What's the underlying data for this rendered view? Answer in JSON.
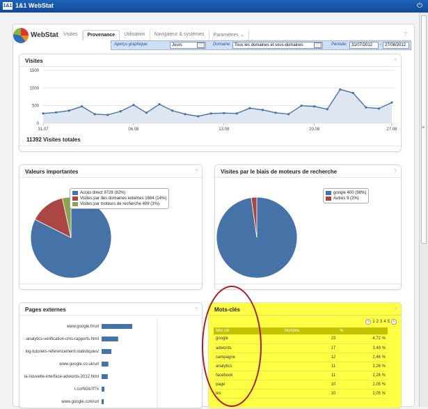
{
  "topbar": {
    "logo": "1&1",
    "title": "1&1 WebStat",
    "power_icon": "power-icon"
  },
  "brand": {
    "name": "WebStat"
  },
  "tabs": [
    {
      "label": "Visites"
    },
    {
      "label": "Provenance"
    },
    {
      "label": "Utilisation"
    },
    {
      "label": "Navigateur & systèmes"
    },
    {
      "label": "Paramètres"
    }
  ],
  "filters": {
    "apercu_label": "Aperçu graphique:",
    "apercu_value": "Jours",
    "domaine_label": "Domaine:",
    "domaine_value": "Tous les domaines et sous-domaines",
    "periode_label": "Période:",
    "date_from": "31/07/2012",
    "date_to": "27/08/2012"
  },
  "visites": {
    "title": "Visites",
    "total": "11392 Visites totales",
    "help": "?"
  },
  "chart_data": [
    {
      "type": "area",
      "title": "Visites",
      "x_ticks": [
        "31.07",
        "06.08",
        "13.08",
        "20.08",
        "27.08"
      ],
      "y_ticks": [
        "0",
        "500",
        "1000",
        "1500"
      ],
      "ylim": [
        0,
        1500
      ],
      "grid": true,
      "values": [
        280,
        310,
        360,
        480,
        260,
        240,
        340,
        520,
        300,
        540,
        360,
        260,
        200,
        280,
        290,
        280,
        430,
        380,
        300,
        260,
        500,
        480,
        400,
        960,
        860,
        450,
        420,
        590
      ]
    },
    {
      "type": "pie",
      "title": "Valeurs importantes",
      "slices": [
        {
          "label": "Accès direct",
          "value": 9728,
          "pct": "82%",
          "color": "#4572a7"
        },
        {
          "label": "Visites par des domaines externes",
          "value": 1664,
          "pct": "14%",
          "color": "#aa4643"
        },
        {
          "label": "Visites par moteurs de recherche",
          "value": 409,
          "pct": "3%",
          "color": "#89a54e"
        }
      ]
    },
    {
      "type": "pie",
      "title": "Visites par le biais de moteurs de recherche",
      "slices": [
        {
          "label": "google",
          "value": 400,
          "pct": "98%",
          "color": "#4572a7"
        },
        {
          "label": "Autres",
          "value": 9,
          "pct": "2%",
          "color": "#aa4643"
        }
      ]
    },
    {
      "type": "bar",
      "title": "Pages externes",
      "categories": [
        "www.google.fr/url",
        "-analytics-verification-cms-rapports.html",
        "log-tutoriels-referencement-statistiques/",
        "www.google.co.uk/url",
        "la-nouvelle-interface-adwords-2012.html",
        "t.co/NGb7f7x",
        "www.google.com/url"
      ],
      "values": [
        100,
        54,
        32,
        22,
        20,
        9,
        7
      ]
    }
  ],
  "legend_vi": [
    {
      "text": "Accès direct  9728 (82%)"
    },
    {
      "text": "Visites par des domaines externes  1664 (14%)"
    },
    {
      "text": "Visites par moteurs de recherche  409 (3%)"
    }
  ],
  "legend_se": [
    {
      "text": "google  400 (98%)"
    },
    {
      "text": "Autres  9 (2%)"
    }
  ],
  "pages_externes": {
    "title": "Pages externes"
  },
  "mots_cles": {
    "title": "Mots-clés",
    "pager": [
      "1",
      "2",
      "3",
      "4",
      "5"
    ],
    "headers": {
      "keyword": "Mot clé",
      "count": "Nombre",
      "pct": "%"
    },
    "rows": [
      {
        "kw": "google",
        "n": "23",
        "p": "4,72 %"
      },
      {
        "kw": "adwords",
        "n": "17",
        "p": "3,49 %"
      },
      {
        "kw": "campagne",
        "n": "12",
        "p": "2,46 %"
      },
      {
        "kw": "analytics",
        "n": "11",
        "p": "2,26 %"
      },
      {
        "kw": "facebook",
        "n": "11",
        "p": "2,26 %"
      },
      {
        "kw": "page",
        "n": "10",
        "p": "2,05 %"
      },
      {
        "kw": "les",
        "n": "10",
        "p": "2,05 %"
      }
    ]
  }
}
